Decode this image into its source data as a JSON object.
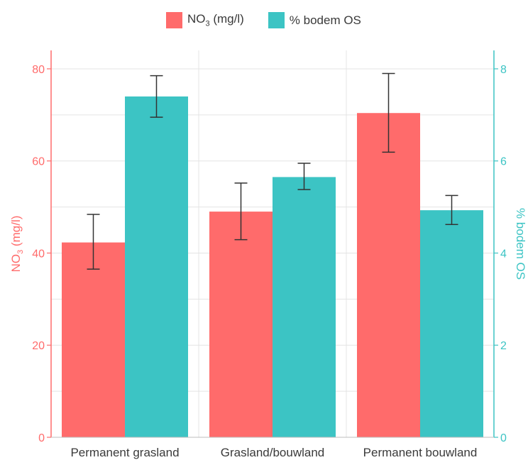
{
  "chart_data": {
    "type": "bar",
    "categories": [
      "Permanent grasland",
      "Grasland/bouwland",
      "Permanent bouwland"
    ],
    "series": [
      {
        "name": "NO3 (mg/l)",
        "name_main": "NO",
        "name_sub": "3",
        "name_rest": " (mg/l)",
        "axis": "left",
        "color": "#ff6b6b",
        "values": [
          42.3,
          49,
          70.4
        ],
        "error_low": [
          36.5,
          42.9,
          61.9
        ],
        "error_high": [
          48.4,
          55.2,
          79
        ]
      },
      {
        "name": "% bodem OS",
        "axis": "right",
        "color": "#3cc4c4",
        "values": [
          7.4,
          5.65,
          4.93
        ],
        "error_low": [
          6.95,
          5.38,
          4.62
        ],
        "error_high": [
          7.85,
          5.95,
          5.25
        ]
      }
    ],
    "y_left": {
      "label_main": "NO",
      "label_sub": "3",
      "label_rest": " (mg/l)",
      "ylim": [
        0,
        84
      ],
      "ticks": [
        0,
        20,
        40,
        60,
        80
      ],
      "color": "#ff6b6b"
    },
    "y_right": {
      "label": "% bodem OS",
      "ylim": [
        0,
        8.4
      ],
      "ticks": [
        0,
        2,
        4,
        6,
        8
      ],
      "color": "#3cc4c4"
    },
    "grid": true,
    "legend_position": "top-center"
  }
}
